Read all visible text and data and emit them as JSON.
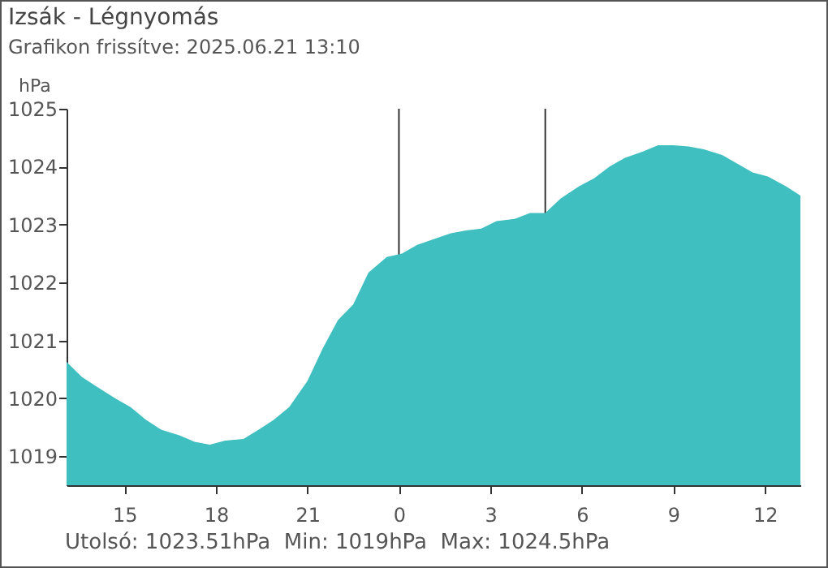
{
  "chart_data": {
    "type": "area",
    "title": "Izsák - Légnyomás",
    "subtitle": "Grafikon frissítve: 2025.06.21 13:10",
    "ylabel": "hPa",
    "x": [
      "2025-06-20T13:06",
      "2025-06-20T13:36",
      "2025-06-20T14:06",
      "2025-06-20T14:42",
      "2025-06-20T15:12",
      "2025-06-20T15:42",
      "2025-06-20T16:12",
      "2025-06-20T16:48",
      "2025-06-20T17:18",
      "2025-06-20T17:48",
      "2025-06-20T18:18",
      "2025-06-20T18:54",
      "2025-06-20T19:24",
      "2025-06-20T19:54",
      "2025-06-20T20:24",
      "2025-06-20T21:00",
      "2025-06-20T21:30",
      "2025-06-20T22:00",
      "2025-06-20T22:30",
      "2025-06-20T23:00",
      "2025-06-20T23:36",
      "2025-06-21T00:06",
      "2025-06-21T00:36",
      "2025-06-21T01:06",
      "2025-06-21T01:42",
      "2025-06-21T02:12",
      "2025-06-21T02:42",
      "2025-06-21T03:12",
      "2025-06-21T03:48",
      "2025-06-21T04:18",
      "2025-06-21T04:48",
      "2025-06-21T05:18",
      "2025-06-21T05:54",
      "2025-06-21T06:24",
      "2025-06-21T06:54",
      "2025-06-21T07:24",
      "2025-06-21T08:00",
      "2025-06-21T08:30",
      "2025-06-21T09:00",
      "2025-06-21T09:30",
      "2025-06-21T10:00",
      "2025-06-21T10:36",
      "2025-06-21T11:06",
      "2025-06-21T11:36",
      "2025-06-21T12:06",
      "2025-06-21T12:42",
      "2025-06-21T13:10"
    ],
    "series": [
      {
        "color": "#40bfc1",
        "values": [
          1020.63,
          1020.37,
          1020.2,
          1020.0,
          1019.85,
          1019.63,
          1019.46,
          1019.36,
          1019.25,
          1019.2,
          1019.27,
          1019.3,
          1019.46,
          1019.63,
          1019.85,
          1020.3,
          1020.86,
          1021.35,
          1021.62,
          1022.17,
          1022.44,
          1022.5,
          1022.65,
          1022.74,
          1022.85,
          1022.9,
          1022.93,
          1023.06,
          1023.1,
          1023.2,
          1023.2,
          1023.45,
          1023.66,
          1023.8,
          1024.0,
          1024.15,
          1024.26,
          1024.37,
          1024.37,
          1024.35,
          1024.3,
          1024.2,
          1024.05,
          1023.9,
          1023.83,
          1023.66,
          1023.5
        ]
      }
    ],
    "xlim": [
      "2025-06-20T13:06",
      "2025-06-21T13:10"
    ],
    "xticks": [
      {
        "value": "2025-06-20T15:00",
        "label": "15"
      },
      {
        "value": "2025-06-20T18:00",
        "label": "18"
      },
      {
        "value": "2025-06-20T21:00",
        "label": "21"
      },
      {
        "value": "2025-06-21T00:00",
        "label": "0"
      },
      {
        "value": "2025-06-21T03:00",
        "label": "3"
      },
      {
        "value": "2025-06-21T06:00",
        "label": "6"
      },
      {
        "value": "2025-06-21T09:00",
        "label": "9"
      },
      {
        "value": "2025-06-21T12:00",
        "label": "12"
      }
    ],
    "ylim": [
      1018.5,
      1025
    ],
    "yticks": [
      1019,
      1020,
      1021,
      1022,
      1023,
      1024,
      1025
    ],
    "ref_lines": [
      {
        "axis": "x",
        "value": "2025-06-21T00:00",
        "color": "#333333"
      },
      {
        "axis": "x",
        "value": "2025-06-21T04:48",
        "color": "#333333"
      }
    ],
    "annotations": [
      "Utolsó: 1023.51hPa  Min: 1019hPa  Max: 1024.5hPa"
    ],
    "grid": false
  }
}
